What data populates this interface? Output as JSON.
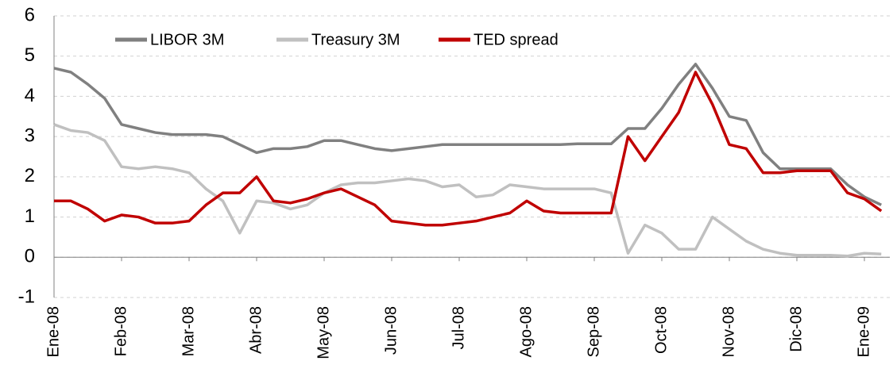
{
  "chart_data": {
    "type": "line",
    "categories": [
      "Ene-08",
      null,
      null,
      null,
      "Feb-08",
      null,
      null,
      null,
      "Mar-08",
      null,
      null,
      null,
      "Abr-08",
      null,
      null,
      null,
      "May-08",
      null,
      null,
      null,
      "Jun-08",
      null,
      null,
      null,
      "Jul-08",
      null,
      null,
      null,
      "Ago-08",
      null,
      null,
      null,
      "Sep-08",
      null,
      null,
      null,
      "Oct-08",
      null,
      null,
      null,
      "Nov-08",
      null,
      null,
      null,
      "Dic-08",
      null,
      null,
      null,
      "Ene-09",
      null
    ],
    "series": [
      {
        "name": "LIBOR 3M",
        "color": "#808080",
        "values": [
          4.7,
          4.6,
          4.3,
          3.95,
          3.3,
          3.2,
          3.1,
          3.05,
          3.05,
          3.05,
          3.0,
          2.8,
          2.6,
          2.7,
          2.7,
          2.75,
          2.9,
          2.9,
          2.8,
          2.7,
          2.65,
          2.7,
          2.75,
          2.8,
          2.8,
          2.8,
          2.8,
          2.8,
          2.8,
          2.8,
          2.8,
          2.82,
          2.82,
          2.82,
          3.2,
          3.2,
          3.7,
          4.3,
          4.8,
          4.2,
          3.5,
          3.4,
          2.6,
          2.2,
          2.2,
          2.2,
          2.2,
          1.8,
          1.5,
          1.3
        ]
      },
      {
        "name": "Treasury 3M",
        "color": "#c0c0c0",
        "values": [
          3.3,
          3.15,
          3.1,
          2.9,
          2.25,
          2.2,
          2.25,
          2.2,
          2.1,
          1.7,
          1.4,
          0.6,
          1.4,
          1.35,
          1.2,
          1.3,
          1.6,
          1.8,
          1.85,
          1.85,
          1.9,
          1.95,
          1.9,
          1.75,
          1.8,
          1.5,
          1.55,
          1.8,
          1.75,
          1.7,
          1.7,
          1.7,
          1.7,
          1.6,
          0.1,
          0.8,
          0.6,
          0.2,
          0.2,
          1.0,
          0.7,
          0.4,
          0.2,
          0.1,
          0.05,
          0.05,
          0.05,
          0.03,
          0.1,
          0.08
        ]
      },
      {
        "name": "TED spread",
        "color": "#c00000",
        "values": [
          1.4,
          1.4,
          1.2,
          0.9,
          1.05,
          1.0,
          0.85,
          0.85,
          0.9,
          1.3,
          1.6,
          1.6,
          2.0,
          1.4,
          1.35,
          1.45,
          1.6,
          1.7,
          1.5,
          1.3,
          0.9,
          0.85,
          0.8,
          0.8,
          0.85,
          0.9,
          1.0,
          1.1,
          1.4,
          1.15,
          1.1,
          1.1,
          1.1,
          1.1,
          3.0,
          2.4,
          3.0,
          3.6,
          4.6,
          3.8,
          2.8,
          2.7,
          2.1,
          2.1,
          2.15,
          2.15,
          2.15,
          1.6,
          1.45,
          1.15
        ]
      }
    ],
    "ylim": [
      -1,
      6
    ],
    "yticks": [
      -1,
      0,
      1,
      2,
      3,
      4,
      5,
      6
    ],
    "grid": true,
    "legend": "top"
  }
}
